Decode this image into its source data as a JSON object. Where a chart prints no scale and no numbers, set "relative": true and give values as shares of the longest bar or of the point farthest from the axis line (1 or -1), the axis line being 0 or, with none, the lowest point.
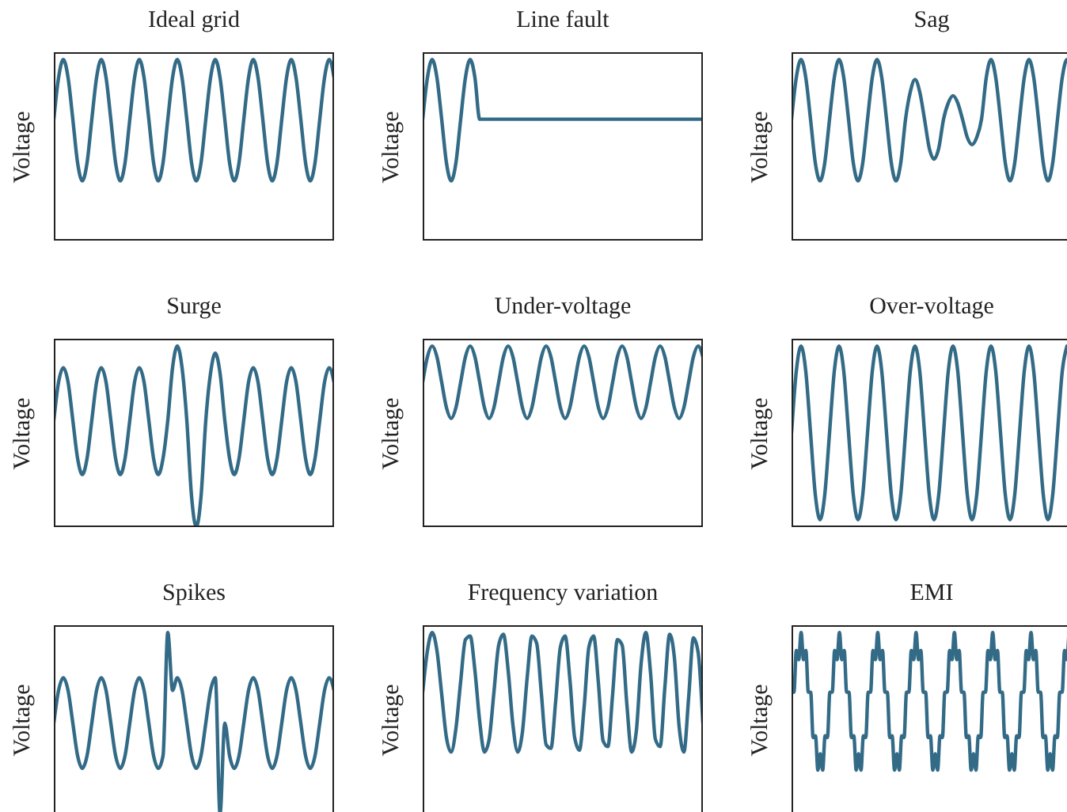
{
  "chart_data": [
    {
      "type": "line",
      "title": "Ideal grid",
      "ylabel": "Voltage",
      "relative": true,
      "categories": [
        null,
        null,
        null,
        null,
        null,
        null,
        null,
        null,
        null,
        null,
        null,
        null,
        null,
        null,
        null,
        null,
        null,
        null,
        null,
        null,
        null,
        null,
        null,
        null,
        null,
        null,
        null,
        null,
        null,
        null,
        null,
        null,
        null,
        null,
        null,
        null,
        null,
        null,
        null,
        null,
        null,
        null,
        null,
        null,
        null,
        null,
        null,
        null,
        null,
        null,
        null,
        null,
        null,
        null,
        null,
        null,
        null,
        null,
        null,
        null
      ],
      "series": [
        {
          "color": "#336b87",
          "values": [
            0.67,
            0.9,
            1,
            0.9,
            0.67,
            0.43,
            0.33,
            0.43,
            0.67,
            0.9,
            1,
            0.9,
            0.67,
            0.43,
            0.33,
            0.43,
            0.67,
            0.9,
            1,
            0.9,
            0.67,
            0.43,
            0.33,
            0.43,
            0.67,
            0.9,
            1,
            0.9,
            0.67,
            0.43,
            0.33,
            0.43,
            0.67,
            0.9,
            1,
            0.9,
            0.67,
            0.43,
            0.33,
            0.43,
            0.67,
            0.9,
            1,
            0.9,
            0.67,
            0.43,
            0.33,
            0.43,
            0.67,
            0.9,
            1,
            0.9,
            0.67,
            0.43,
            0.33,
            0.43,
            0.67,
            0.9,
            1,
            0.9
          ]
        }
      ]
    },
    {
      "type": "line",
      "title": "Line fault",
      "ylabel": "Voltage",
      "relative": true,
      "categories": [
        null,
        null,
        null,
        null,
        null,
        null,
        null,
        null,
        null,
        null,
        null,
        null,
        null,
        null,
        null,
        null,
        null,
        null,
        null,
        null,
        null,
        null,
        null,
        null,
        null,
        null,
        null,
        null,
        null,
        null,
        null,
        null,
        null,
        null,
        null,
        null,
        null,
        null,
        null,
        null,
        null,
        null,
        null,
        null,
        null,
        null,
        null,
        null,
        null,
        null,
        null,
        null,
        null,
        null,
        null,
        null,
        null,
        null,
        null,
        null
      ],
      "series": [
        {
          "color": "#336b87",
          "values": [
            0.67,
            0.9,
            1,
            0.9,
            0.67,
            0.43,
            0.33,
            0.43,
            0.67,
            0.9,
            1,
            0.9,
            0.67,
            0.67,
            0.67,
            0.67,
            0.67,
            0.67,
            0.67,
            0.67,
            0.67,
            0.67,
            0.67,
            0.67,
            0.67,
            0.67,
            0.67,
            0.67,
            0.67,
            0.67,
            0.67,
            0.67,
            0.67,
            0.67,
            0.67,
            0.67,
            0.67,
            0.67,
            0.67,
            0.67,
            0.67,
            0.67,
            0.67,
            0.67,
            0.67,
            0.67,
            0.67,
            0.67,
            0.67,
            0.67,
            0.67,
            0.67,
            0.67,
            0.67,
            0.67,
            0.67,
            0.67,
            0.67,
            0.67,
            0.67
          ]
        }
      ]
    },
    {
      "type": "line",
      "title": "Sag",
      "ylabel": "Voltage",
      "relative": true,
      "categories": [
        null,
        null,
        null,
        null,
        null,
        null,
        null,
        null,
        null,
        null,
        null,
        null,
        null,
        null,
        null,
        null,
        null,
        null,
        null,
        null,
        null,
        null,
        null,
        null,
        null,
        null,
        null,
        null,
        null,
        null,
        null,
        null,
        null,
        null,
        null,
        null,
        null,
        null,
        null,
        null,
        null,
        null,
        null,
        null,
        null,
        null,
        null,
        null,
        null,
        null,
        null,
        null,
        null,
        null,
        null,
        null,
        null,
        null,
        null,
        null
      ],
      "series": [
        {
          "color": "#336b87",
          "values": [
            0.67,
            0.9,
            1,
            0.9,
            0.67,
            0.43,
            0.33,
            0.43,
            0.67,
            0.9,
            1,
            0.9,
            0.67,
            0.43,
            0.33,
            0.43,
            0.67,
            0.9,
            1,
            0.9,
            0.67,
            0.43,
            0.33,
            0.43,
            0.67,
            0.82,
            0.89,
            0.82,
            0.67,
            0.51,
            0.45,
            0.51,
            0.67,
            0.76,
            0.8,
            0.76,
            0.67,
            0.57,
            0.53,
            0.57,
            0.67,
            0.9,
            1,
            0.9,
            0.67,
            0.43,
            0.33,
            0.43,
            0.67,
            0.9,
            1,
            0.9,
            0.67,
            0.43,
            0.33,
            0.43,
            0.67,
            0.9,
            1,
            0.9
          ]
        }
      ]
    },
    {
      "type": "line",
      "title": "Surge",
      "ylabel": "Voltage",
      "relative": true,
      "categories": [
        null,
        null,
        null,
        null,
        null,
        null,
        null,
        null,
        null,
        null,
        null,
        null,
        null,
        null,
        null,
        null,
        null,
        null,
        null,
        null,
        null,
        null,
        null,
        null,
        null,
        null,
        null,
        null,
        null,
        null,
        null,
        null,
        null,
        null,
        null,
        null,
        null,
        null,
        null,
        null,
        null,
        null,
        null,
        null,
        null,
        null,
        null,
        null,
        null,
        null,
        null,
        null,
        null,
        null,
        null,
        null,
        null,
        null,
        null,
        null
      ],
      "series": [
        {
          "color": "#336b87",
          "values": [
            0.59,
            0.8,
            0.88,
            0.8,
            0.59,
            0.38,
            0.29,
            0.38,
            0.59,
            0.8,
            0.88,
            0.8,
            0.59,
            0.38,
            0.29,
            0.38,
            0.59,
            0.8,
            0.88,
            0.8,
            0.59,
            0.38,
            0.29,
            0.38,
            0.59,
            0.88,
            1,
            0.88,
            0.59,
            0.17,
            0,
            0.17,
            0.59,
            0.85,
            0.96,
            0.85,
            0.59,
            0.38,
            0.29,
            0.38,
            0.59,
            0.8,
            0.88,
            0.8,
            0.59,
            0.38,
            0.29,
            0.38,
            0.59,
            0.8,
            0.88,
            0.8,
            0.59,
            0.38,
            0.29,
            0.38,
            0.59,
            0.8,
            0.88,
            0.8
          ]
        }
      ]
    },
    {
      "type": "line",
      "title": "Under-voltage",
      "ylabel": "Voltage",
      "relative": true,
      "categories": [
        null,
        null,
        null,
        null,
        null,
        null,
        null,
        null,
        null,
        null,
        null,
        null,
        null,
        null,
        null,
        null,
        null,
        null,
        null,
        null,
        null,
        null,
        null,
        null,
        null,
        null,
        null,
        null,
        null,
        null,
        null,
        null,
        null,
        null,
        null,
        null,
        null,
        null,
        null,
        null,
        null,
        null,
        null,
        null,
        null,
        null,
        null,
        null,
        null,
        null,
        null,
        null,
        null,
        null,
        null,
        null,
        null,
        null,
        null,
        null
      ],
      "series": [
        {
          "color": "#336b87",
          "values": [
            0.8,
            0.94,
            1,
            0.94,
            0.8,
            0.66,
            0.6,
            0.66,
            0.8,
            0.94,
            1,
            0.94,
            0.8,
            0.66,
            0.6,
            0.66,
            0.8,
            0.94,
            1,
            0.94,
            0.8,
            0.66,
            0.6,
            0.66,
            0.8,
            0.94,
            1,
            0.94,
            0.8,
            0.66,
            0.6,
            0.66,
            0.8,
            0.94,
            1,
            0.94,
            0.8,
            0.66,
            0.6,
            0.66,
            0.8,
            0.94,
            1,
            0.94,
            0.8,
            0.66,
            0.6,
            0.66,
            0.8,
            0.94,
            1,
            0.94,
            0.8,
            0.66,
            0.6,
            0.66,
            0.8,
            0.94,
            1,
            0.94
          ]
        }
      ]
    },
    {
      "type": "line",
      "title": "Over-voltage",
      "ylabel": "Voltage",
      "relative": true,
      "categories": [
        null,
        null,
        null,
        null,
        null,
        null,
        null,
        null,
        null,
        null,
        null,
        null,
        null,
        null,
        null,
        null,
        null,
        null,
        null,
        null,
        null,
        null,
        null,
        null,
        null,
        null,
        null,
        null,
        null,
        null,
        null,
        null,
        null,
        null,
        null,
        null,
        null,
        null,
        null,
        null,
        null,
        null,
        null,
        null,
        null,
        null,
        null,
        null,
        null,
        null,
        null,
        null,
        null,
        null,
        null,
        null,
        null,
        null,
        null,
        null
      ],
      "series": [
        {
          "color": "#336b87",
          "values": [
            0.52,
            0.86,
            1,
            0.86,
            0.52,
            0.18,
            0.04,
            0.18,
            0.52,
            0.86,
            1,
            0.86,
            0.52,
            0.18,
            0.04,
            0.18,
            0.52,
            0.86,
            1,
            0.86,
            0.52,
            0.18,
            0.04,
            0.18,
            0.52,
            0.86,
            1,
            0.86,
            0.52,
            0.18,
            0.04,
            0.18,
            0.52,
            0.86,
            1,
            0.86,
            0.52,
            0.18,
            0.04,
            0.18,
            0.52,
            0.86,
            1,
            0.86,
            0.52,
            0.18,
            0.04,
            0.18,
            0.52,
            0.86,
            1,
            0.86,
            0.52,
            0.18,
            0.04,
            0.18,
            0.52,
            0.86,
            1,
            null
          ]
        }
      ]
    },
    {
      "type": "line",
      "title": "Spikes",
      "ylabel": "Voltage",
      "relative": true,
      "categories": [
        null,
        null,
        null,
        null,
        null,
        null,
        null,
        null,
        null,
        null,
        null,
        null,
        null,
        null,
        null,
        null,
        null,
        null,
        null,
        null,
        null,
        null,
        null,
        null,
        null,
        null,
        null,
        null,
        null,
        null,
        null,
        null,
        null,
        null,
        null,
        null,
        null,
        null,
        null,
        null,
        null,
        null,
        null,
        null,
        null,
        null,
        null,
        null,
        null,
        null,
        null,
        null,
        null,
        null,
        null,
        null,
        null,
        null,
        null,
        null
      ],
      "series": [
        {
          "color": "#336b87",
          "values": [
            0.5,
            0.68,
            0.75,
            0.68,
            0.5,
            0.32,
            0.25,
            0.32,
            0.5,
            0.68,
            0.75,
            0.68,
            0.5,
            0.32,
            0.25,
            0.32,
            0.5,
            0.68,
            0.75,
            0.68,
            0.5,
            0.32,
            0.25,
            0.32,
            1,
            0.68,
            0.75,
            0.68,
            0.5,
            0.32,
            0.25,
            0.32,
            0.5,
            0.68,
            0.75,
            0,
            0.5,
            0.32,
            0.25,
            0.32,
            0.5,
            0.68,
            0.75,
            0.68,
            0.5,
            0.32,
            0.25,
            0.32,
            0.5,
            0.68,
            0.75,
            0.68,
            0.5,
            0.32,
            0.25,
            0.32,
            0.5,
            0.68,
            0.75,
            0.68
          ]
        }
      ]
    },
    {
      "type": "line",
      "title": "Frequency variation",
      "ylabel": "Voltage",
      "relative": true,
      "categories": [
        null,
        null,
        null,
        null,
        null,
        null,
        null,
        null,
        null,
        null,
        null,
        null,
        null,
        null,
        null,
        null,
        null,
        null,
        null,
        null,
        null,
        null,
        null,
        null,
        null,
        null,
        null,
        null,
        null,
        null,
        null,
        null,
        null,
        null,
        null,
        null,
        null,
        null,
        null,
        null,
        null,
        null,
        null,
        null,
        null,
        null,
        null,
        null,
        null,
        null,
        null,
        null,
        null,
        null,
        null,
        null,
        null,
        null,
        null,
        null
      ],
      "series": [
        {
          "color": "#336b87",
          "values": [
            0.67,
            0.9,
            1,
            0.9,
            0.66,
            0.42,
            0.34,
            0.47,
            0.73,
            0.96,
            0.98,
            0.79,
            0.51,
            0.34,
            0.41,
            0.67,
            0.93,
            0.99,
            0.79,
            0.49,
            0.34,
            0.45,
            0.75,
            0.98,
            0.94,
            0.66,
            0.38,
            0.36,
            0.62,
            0.92,
            0.98,
            0.74,
            0.42,
            0.35,
            0.59,
            0.92,
            0.98,
            0.72,
            0.4,
            0.37,
            0.66,
            0.96,
            0.93,
            0.6,
            0.34,
            0.46,
            0.83,
            1,
            0.77,
            0.41,
            0.37,
            0.7,
            0.99,
            0.86,
            0.48,
            0.34,
            0.64,
            0.97,
            0.89,
            0.5
          ]
        }
      ]
    },
    {
      "type": "line",
      "title": "EMI",
      "ylabel": "Voltage",
      "relative": true,
      "categories": [
        null,
        null,
        null,
        null,
        null,
        null,
        null,
        null,
        null,
        null,
        null,
        null,
        null,
        null,
        null,
        null,
        null,
        null,
        null,
        null,
        null,
        null,
        null,
        null,
        null,
        null,
        null,
        null,
        null,
        null,
        null,
        null,
        null,
        null,
        null,
        null,
        null,
        null,
        null,
        null,
        null,
        null,
        null,
        null,
        null,
        null,
        null,
        null,
        null,
        null,
        null,
        null,
        null,
        null,
        null,
        null,
        null,
        null,
        null,
        null,
        null,
        null,
        null,
        null,
        null,
        null,
        null,
        null,
        null,
        null,
        null,
        null,
        null,
        null,
        null,
        null,
        null,
        null,
        null,
        null,
        null,
        null,
        null,
        null,
        null,
        null,
        null,
        null,
        null,
        null,
        null,
        null,
        null,
        null,
        null,
        null,
        null,
        null,
        null,
        null,
        null,
        null,
        null,
        null,
        null,
        null,
        null,
        null,
        null,
        null,
        null,
        null,
        null,
        null,
        null,
        null,
        null,
        null
      ],
      "series": [
        {
          "color": "#336b87",
          "values": [
            0.67,
            0.67,
            0.9,
            0.85,
            1,
            0.85,
            0.9,
            0.67,
            0.67,
            0.42,
            0.43,
            0.24,
            0.33,
            0.24,
            0.43,
            0.42,
            0.67,
            0.67,
            0.9,
            0.85,
            1,
            0.85,
            0.9,
            0.67,
            0.67,
            0.42,
            0.43,
            0.24,
            0.33,
            0.24,
            0.43,
            0.42,
            0.67,
            0.67,
            0.9,
            0.85,
            1,
            0.85,
            0.9,
            0.67,
            0.67,
            0.42,
            0.43,
            0.24,
            0.33,
            0.24,
            0.43,
            0.42,
            0.67,
            0.67,
            0.9,
            0.85,
            1,
            0.85,
            0.9,
            0.67,
            0.67,
            0.42,
            0.43,
            0.24,
            0.33,
            0.24,
            0.43,
            0.42,
            0.67,
            0.67,
            0.9,
            0.85,
            1,
            0.85,
            0.9,
            0.67,
            0.67,
            0.42,
            0.43,
            0.24,
            0.33,
            0.24,
            0.43,
            0.42,
            0.67,
            0.67,
            0.9,
            0.85,
            1,
            0.85,
            0.9,
            0.67,
            0.67,
            0.42,
            0.43,
            0.24,
            0.33,
            0.24,
            0.43,
            0.42,
            0.67,
            0.67,
            0.9,
            0.85,
            1,
            0.85,
            0.9,
            0.67,
            0.67,
            0.42,
            0.43,
            0.24,
            0.33,
            0.24,
            0.43,
            0.42,
            0.67,
            0.67,
            0.9,
            0.85,
            1,
            0.85
          ]
        }
      ]
    }
  ]
}
